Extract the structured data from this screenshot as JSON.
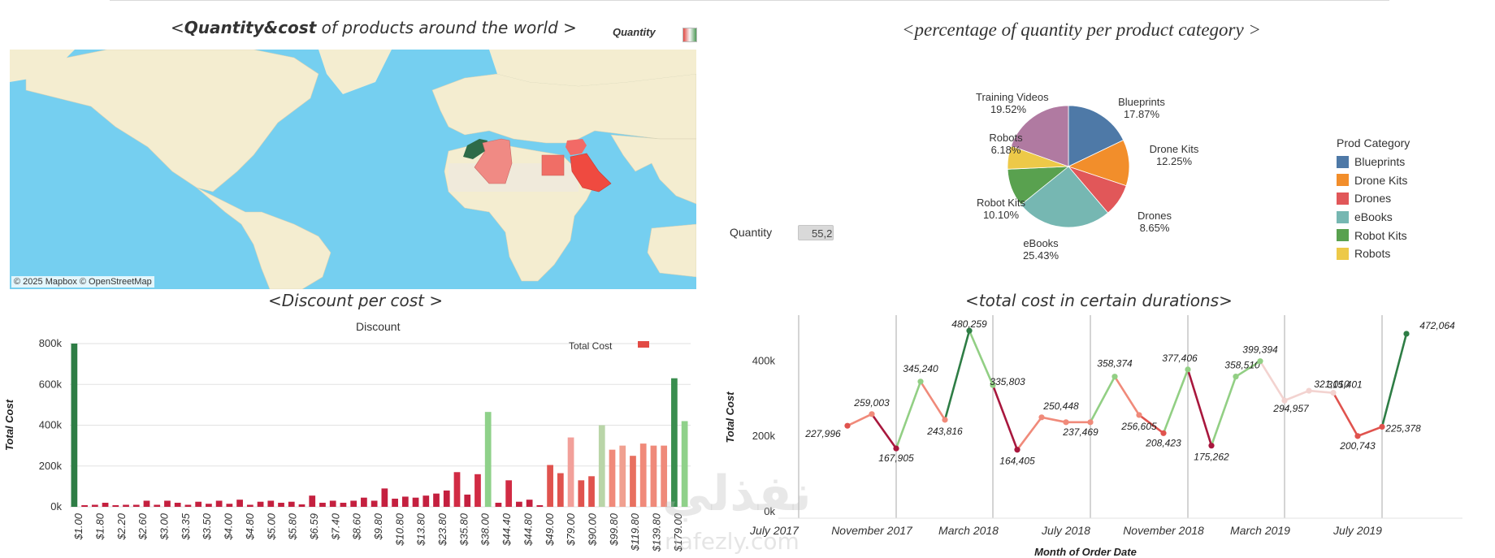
{
  "map_panel": {
    "title_bold": "Quantity&cost",
    "title_rest": " of products around the world >",
    "title_open": "<",
    "legend_label": "Quantity",
    "attribution": "© 2025 Mapbox  © OpenStreetMap"
  },
  "pie_panel": {
    "title": "<percentage of quantity per product category >",
    "legend_title": "Prod Category",
    "quantity_filter_label": "Quantity",
    "quantity_filter_value": "55,2"
  },
  "pie_chart_data": {
    "type": "pie",
    "slices": [
      {
        "name": "Blueprints",
        "value": 17.87,
        "label": "17.87%",
        "color": "#4e79a7"
      },
      {
        "name": "Drone Kits",
        "value": 12.25,
        "label": "12.25%",
        "color": "#f28e2b"
      },
      {
        "name": "Drones",
        "value": 8.65,
        "label": "8.65%",
        "color": "#e15759"
      },
      {
        "name": "eBooks",
        "value": 25.43,
        "label": "25.43%",
        "color": "#76b7b2"
      },
      {
        "name": "Robot Kits",
        "value": 10.1,
        "label": "10.10%",
        "color": "#59a14f"
      },
      {
        "name": "Robots",
        "value": 6.18,
        "label": "6.18%",
        "color": "#edc948"
      },
      {
        "name": "Training Videos",
        "value": 19.52,
        "label": "19.52%",
        "color": "#b07aa1"
      }
    ],
    "legend_items": [
      "Blueprints",
      "Drone Kits",
      "Drones",
      "eBooks",
      "Robot Kits",
      "Robots"
    ]
  },
  "bar_panel": {
    "title": "<Discount per cost >",
    "column_header": "Discount",
    "legend_label": "Total Cost"
  },
  "bar_chart_data": {
    "type": "bar",
    "ylabel": "Total Cost",
    "ylim": [
      0,
      800000
    ],
    "y_ticks": [
      "0k",
      "200k",
      "400k",
      "600k",
      "800k"
    ],
    "x_tick_labels": [
      "$1.00",
      "$1.80",
      "$2.20",
      "$2.60",
      "$3.00",
      "$3.35",
      "$3.50",
      "$4.00",
      "$4.80",
      "$5.00",
      "$5.80",
      "$6.59",
      "$7.40",
      "$8.60",
      "$9.80",
      "$10.80",
      "$13.80",
      "$23.80",
      "$35.80",
      "$38.00",
      "$44.40",
      "$44.80",
      "$49.00",
      "$79.00",
      "$90.00",
      "$99.80",
      "$119.80",
      "$139.80",
      "$179.00"
    ],
    "values": [
      800000,
      8000,
      10000,
      20000,
      8000,
      10000,
      10000,
      30000,
      10000,
      30000,
      20000,
      10000,
      25000,
      15000,
      30000,
      15000,
      35000,
      10000,
      25000,
      30000,
      20000,
      25000,
      12000,
      55000,
      20000,
      30000,
      20000,
      30000,
      45000,
      30000,
      90000,
      40000,
      50000,
      45000,
      55000,
      65000,
      80000,
      170000,
      60000,
      160000,
      465000,
      20000,
      130000,
      25000,
      35000,
      5000,
      205000,
      165000,
      340000,
      130000,
      150000,
      400000,
      280000,
      300000,
      250000,
      310000,
      300000,
      300000,
      630000,
      420000
    ],
    "colors": [
      "#2e7d45",
      "#c4203f",
      "#c4203f",
      "#c4203f",
      "#c4203f",
      "#c4203f",
      "#c4203f",
      "#c4203f",
      "#c4203f",
      "#c4203f",
      "#c4203f",
      "#c4203f",
      "#c4203f",
      "#c4203f",
      "#c4203f",
      "#c4203f",
      "#c4203f",
      "#c4203f",
      "#c4203f",
      "#c4203f",
      "#c4203f",
      "#c4203f",
      "#c4203f",
      "#c4203f",
      "#c4203f",
      "#c4203f",
      "#c4203f",
      "#c4203f",
      "#c4203f",
      "#c4203f",
      "#c4203f",
      "#c4203f",
      "#c4203f",
      "#c4203f",
      "#c4203f",
      "#c4203f",
      "#c4203f",
      "#d12b44",
      "#c4203f",
      "#d12b44",
      "#8fd18a",
      "#c4203f",
      "#d12b44",
      "#c4203f",
      "#c4203f",
      "#c4203f",
      "#e0534e",
      "#e0534e",
      "#f2a09a",
      "#e0534e",
      "#e0534e",
      "#b9d5a8",
      "#f08a7a",
      "#f0a090",
      "#e87060",
      "#f08a7a",
      "#ef8a7a",
      "#ef8a7a",
      "#3a8e4f",
      "#8fd18a"
    ]
  },
  "line_panel": {
    "title": "<total cost in certain durations>",
    "xlabel": "Month of Order Date"
  },
  "line_chart_data": {
    "type": "line",
    "ylabel": "Total Cost",
    "ylim": [
      0,
      500000
    ],
    "y_ticks": [
      "0k",
      "200k",
      "400k"
    ],
    "x_tick_labels": [
      "July 2017",
      "November 2017",
      "March 2018",
      "July 2018",
      "November 2018",
      "March 2019",
      "July 2019"
    ],
    "points": [
      {
        "label": "227,996",
        "value": 227996
      },
      {
        "label": "259,003",
        "value": 259003
      },
      {
        "label": "167,905",
        "value": 167905
      },
      {
        "label": "345,240",
        "value": 345240
      },
      {
        "label": "243,816",
        "value": 243816
      },
      {
        "label": "480,259",
        "value": 480259
      },
      {
        "label": "335,803",
        "value": 335803
      },
      {
        "label": "164,405",
        "value": 164405
      },
      {
        "label": "250,448",
        "value": 250448
      },
      {
        "label": "237,469",
        "value": 237469
      },
      {
        "label": "",
        "value": 237469
      },
      {
        "label": "358,374",
        "value": 358374
      },
      {
        "label": "256,605",
        "value": 256605
      },
      {
        "label": "208,423",
        "value": 208423
      },
      {
        "label": "377,406",
        "value": 377406
      },
      {
        "label": "175,262",
        "value": 175262
      },
      {
        "label": "358,510",
        "value": 358510
      },
      {
        "label": "399,394",
        "value": 399394
      },
      {
        "label": "294,957",
        "value": 294957
      },
      {
        "label": "321,010",
        "value": 321010
      },
      {
        "label": "315,401",
        "value": 315401
      },
      {
        "label": "200,743",
        "value": 200743
      },
      {
        "label": "225,378",
        "value": 225378
      },
      {
        "label": "472,064",
        "value": 472064
      }
    ]
  }
}
